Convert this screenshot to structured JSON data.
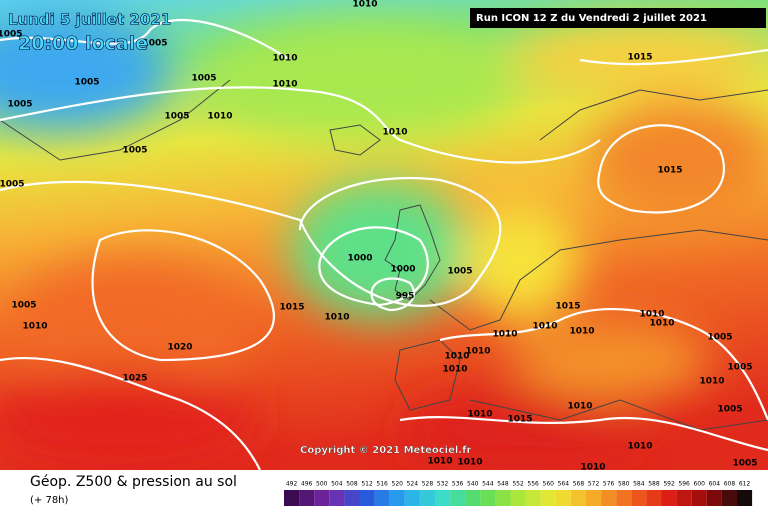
{
  "header": {
    "date": "Lundi 5 juillet 2021",
    "time": "20:00 locale",
    "run": "Run ICON 12 Z du Vendredi 2 juillet 2021"
  },
  "copyright": "Copyright © 2021 Meteociel.fr",
  "footer": {
    "title": "Géop. Z500 & pression au sol",
    "subtitle": "(+ 78h)"
  },
  "scale": [
    492,
    496,
    500,
    504,
    508,
    512,
    516,
    520,
    524,
    528,
    532,
    536,
    540,
    544,
    548,
    552,
    556,
    560,
    564,
    568,
    572,
    576,
    580,
    584,
    588,
    592,
    596,
    600,
    604,
    608,
    612
  ],
  "isobars": [
    "1010",
    "1005",
    "1005",
    "1010",
    "1005",
    "1005",
    "1010",
    "1005",
    "1005",
    "1010",
    "1010",
    "1005",
    "1005",
    "1015",
    "1015",
    "1000",
    "1000",
    "995",
    "1005",
    "1015",
    "1010",
    "1005",
    "1010",
    "1020",
    "1025",
    "1015",
    "1010",
    "1010",
    "1010",
    "1010",
    "1010",
    "1010",
    "1010",
    "1010",
    "1005",
    "1010",
    "1005",
    "1010",
    "1010",
    "1015",
    "1010",
    "1010",
    "1005",
    "1005",
    "1010",
    "1010"
  ]
}
